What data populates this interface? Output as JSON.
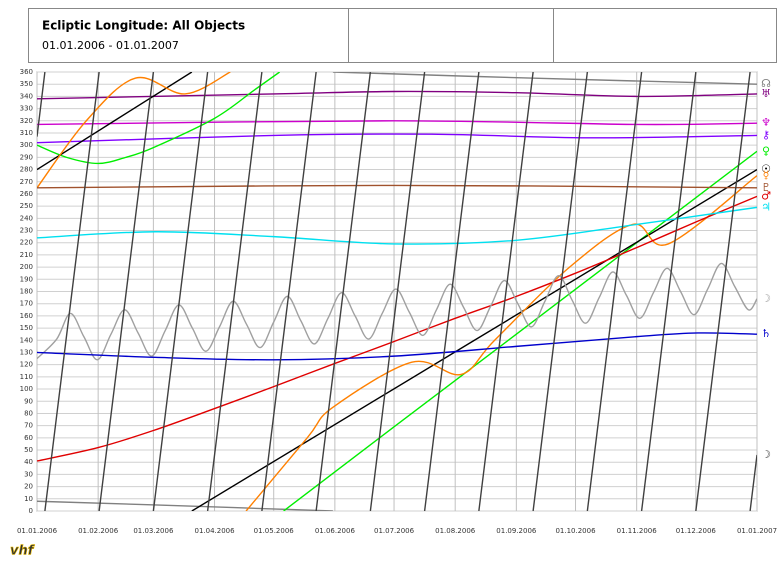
{
  "chart_data": {
    "type": "line",
    "title": "Ecliptic Longitude: All Objects",
    "subtitle": "01.01.2006 - 01.01.2007",
    "logo": "vhf",
    "xlim": [
      0,
      365
    ],
    "ylim": [
      0,
      360
    ],
    "grid": true,
    "xticks": [
      {
        "value": 0,
        "label": "01.01.2006"
      },
      {
        "value": 31,
        "label": "01.02.2006"
      },
      {
        "value": 59,
        "label": "01.03.2006"
      },
      {
        "value": 90,
        "label": "01.04.2006"
      },
      {
        "value": 120,
        "label": "01.05.2006"
      },
      {
        "value": 151,
        "label": "01.06.2006"
      },
      {
        "value": 181,
        "label": "01.07.2006"
      },
      {
        "value": 212,
        "label": "01.08.2006"
      },
      {
        "value": 243,
        "label": "01.09.2006"
      },
      {
        "value": 273,
        "label": "01.10.2006"
      },
      {
        "value": 304,
        "label": "01.11.2006"
      },
      {
        "value": 334,
        "label": "01.12.2006"
      },
      {
        "value": 365,
        "label": "01.01.2007"
      }
    ],
    "yticks": [
      0,
      10,
      20,
      30,
      40,
      50,
      60,
      70,
      80,
      90,
      100,
      110,
      120,
      130,
      140,
      150,
      160,
      170,
      180,
      190,
      200,
      210,
      220,
      230,
      240,
      250,
      260,
      270,
      280,
      290,
      300,
      310,
      320,
      330,
      340,
      350,
      360
    ],
    "series": [
      {
        "name": "☊",
        "color": "#808080",
        "x": [
          0,
          60,
          150,
          150,
          150,
          250,
          365
        ],
        "values": [
          8,
          5,
          0,
          null,
          360,
          355,
          350
        ]
      },
      {
        "name": "♅",
        "color": "#800080",
        "x": [
          0,
          120,
          181,
          243,
          304,
          365
        ],
        "values": [
          338,
          342,
          344,
          343,
          340,
          342
        ]
      },
      {
        "name": "♆",
        "color": "#cc00cc",
        "x": [
          0,
          181,
          304,
          365
        ],
        "values": [
          317,
          320,
          317,
          318
        ]
      },
      {
        "name": "⚷",
        "color": "#8000ff",
        "x": [
          0,
          120,
          200,
          280,
          365
        ],
        "values": [
          302,
          308,
          309,
          306,
          308
        ]
      },
      {
        "name": "♀",
        "color": "#00ee00",
        "x": [
          0,
          15,
          31,
          45,
          59,
          90,
          110,
          123,
          123,
          125,
          181,
          243,
          304,
          365
        ],
        "values": [
          300,
          290,
          285,
          290,
          298,
          322,
          345,
          360,
          null,
          0,
          69,
          145,
          220,
          295
        ]
      },
      {
        "name": "☉",
        "color": "#000000",
        "x": [
          0,
          78.5,
          78.5,
          78.5,
          365
        ],
        "values": [
          280,
          360,
          null,
          0,
          280
        ]
      },
      {
        "name": "☿",
        "color": "#ff8000",
        "x": [
          0,
          25,
          50,
          75,
          98,
          98,
          106,
          137,
          150,
          190,
          215,
          232,
          270,
          302,
          320,
          365
        ],
        "values": [
          265,
          320,
          355,
          342,
          360,
          null,
          0,
          60,
          85,
          122,
          112,
          140,
          200,
          235,
          219,
          275
        ]
      },
      {
        "name": "♇",
        "color": "#a0522d",
        "x": [
          0,
          181,
          365
        ],
        "values": [
          265,
          267,
          265
        ]
      },
      {
        "name": "♂",
        "color": "#e00000",
        "x": [
          0,
          31,
          59,
          90,
          120,
          151,
          181,
          212,
          243,
          273,
          304,
          334,
          365
        ],
        "values": [
          41,
          52,
          66,
          84,
          102,
          121,
          139,
          158,
          176,
          195,
          216,
          237,
          258
        ]
      },
      {
        "name": "♃",
        "color": "#00e0f0",
        "x": [
          0,
          60,
          120,
          181,
          243,
          304,
          365
        ],
        "values": [
          224,
          229,
          225,
          219,
          222,
          235,
          249
        ]
      },
      {
        "name": "☽",
        "color": "#a0a0a0",
        "x": [
          0,
          10,
          16.9,
          23.75,
          30.6,
          37.5,
          44.4,
          51.25,
          58.1,
          65,
          71.9,
          78.75,
          85.6,
          92.5,
          99.4,
          106.25,
          113.1,
          120,
          126.9,
          133.75,
          140.6,
          147.5,
          154.4,
          161.25,
          168.1,
          175,
          181.9,
          188.75,
          195.6,
          202.5,
          209.4,
          216.25,
          223.1,
          230,
          236.9,
          243.75,
          250.6,
          257.5,
          264.4,
          271.25,
          278.1,
          285,
          291.9,
          298.75,
          305.6,
          312.5,
          319.4,
          326.25,
          333.1,
          340,
          346.9,
          353.75,
          360.6,
          365
        ],
        "values": [
          125,
          141,
          162,
          143,
          124,
          145,
          165,
          146,
          127,
          148,
          169,
          150,
          131,
          151,
          172,
          153,
          134,
          155,
          176,
          156,
          137,
          158,
          179,
          160,
          141,
          162,
          182,
          163,
          144,
          165,
          186,
          167,
          148,
          168,
          189,
          170,
          151,
          172,
          193,
          173,
          154,
          175,
          196,
          177,
          158,
          179,
          199,
          180,
          161,
          182,
          203,
          184,
          165,
          174
        ]
      },
      {
        "name": "♄",
        "color": "#0000cc",
        "x": [
          0,
          60,
          120,
          181,
          243,
          304,
          335,
          365
        ],
        "values": [
          130,
          126,
          124,
          127,
          135,
          143,
          146,
          145
        ]
      },
      {
        "name": "☽",
        "color": "#404040",
        "x": [
          0,
          4,
          4,
          4,
          31.5,
          31.5,
          31.5,
          59,
          59,
          59,
          86.5,
          86.5,
          86.5,
          114,
          114,
          114,
          141.5,
          141.5,
          141.5,
          169,
          169,
          169,
          196.5,
          196.5,
          196.5,
          224,
          224,
          224,
          251.5,
          251.5,
          251.5,
          279,
          279,
          279,
          306.5,
          306.5,
          306.5,
          334,
          334,
          334,
          361.5,
          361.5,
          361.5,
          365
        ],
        "values": [
          307,
          360,
          null,
          0,
          360,
          null,
          0,
          360,
          null,
          0,
          360,
          null,
          0,
          360,
          null,
          0,
          360,
          null,
          0,
          360,
          null,
          0,
          360,
          null,
          0,
          360,
          null,
          0,
          360,
          null,
          0,
          360,
          null,
          0,
          360,
          null,
          0,
          360,
          null,
          0,
          360,
          null,
          0,
          46
        ]
      }
    ]
  }
}
